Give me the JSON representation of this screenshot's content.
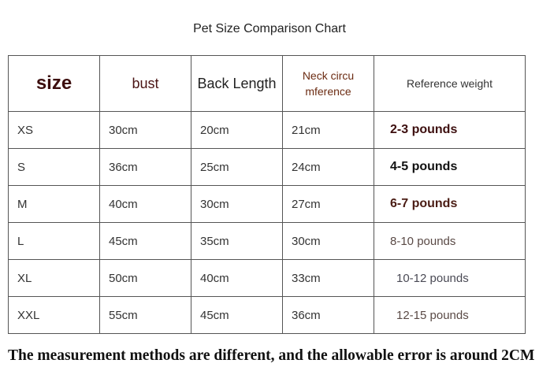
{
  "title": "Pet Size Comparison Chart",
  "headers": {
    "size": "size",
    "bust": "bust",
    "back": "Back Length",
    "neck": "Neck circu mference",
    "ref": "Reference weight"
  },
  "rows": [
    {
      "size": "XS",
      "bust": "30cm",
      "back": "20cm",
      "neck": "21cm",
      "weight": "2-3 pounds"
    },
    {
      "size": "S",
      "bust": "36cm",
      "back": "25cm",
      "neck": "24cm",
      "weight": "4-5 pounds"
    },
    {
      "size": "M",
      "bust": "40cm",
      "back": "30cm",
      "neck": "27cm",
      "weight": "6-7 pounds"
    },
    {
      "size": "L",
      "bust": "45cm",
      "back": "35cm",
      "neck": "30cm",
      "weight": "8-10 pounds"
    },
    {
      "size": "XL",
      "bust": "50cm",
      "back": "40cm",
      "neck": "33cm",
      "weight": "10-12 pounds"
    },
    {
      "size": "XXL",
      "bust": "55cm",
      "back": "45cm",
      "neck": "36cm",
      "weight": "12-15 pounds"
    }
  ],
  "weight_colors": [
    "#3d0f0f",
    "#111111",
    "#4a1c14",
    "#5a4a46",
    "#4a4a55",
    "#5a4a46"
  ],
  "footer": "The measurement methods are different, and the allowable error is around 2CM"
}
